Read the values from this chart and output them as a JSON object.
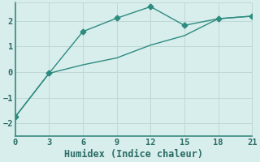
{
  "line1_x": [
    0,
    3,
    6,
    9,
    12,
    15,
    18,
    21
  ],
  "line1_y": [
    -1.75,
    -0.05,
    1.58,
    2.1,
    2.55,
    1.82,
    2.08,
    2.18
  ],
  "line2_x": [
    0,
    3,
    6,
    9,
    12,
    15,
    18,
    21
  ],
  "line2_y": [
    -1.75,
    -0.05,
    0.28,
    0.55,
    1.05,
    1.42,
    2.08,
    2.18
  ],
  "line_color": "#2d8b80",
  "bg_color": "#d8eeec",
  "grid_color": "#c0d8d4",
  "spine_color": "#3a8a80",
  "xlabel": "Humidex (Indice chaleur)",
  "xlim": [
    0,
    21
  ],
  "ylim": [
    -2.5,
    2.7
  ],
  "xticks": [
    0,
    3,
    6,
    9,
    12,
    15,
    18,
    21
  ],
  "yticks": [
    -2,
    -1,
    0,
    1,
    2
  ],
  "marker": "D",
  "markersize": 3.5,
  "linewidth": 1.0,
  "font_color": "#2a6b65",
  "xlabel_fontsize": 8.5,
  "tick_fontsize": 7.5
}
